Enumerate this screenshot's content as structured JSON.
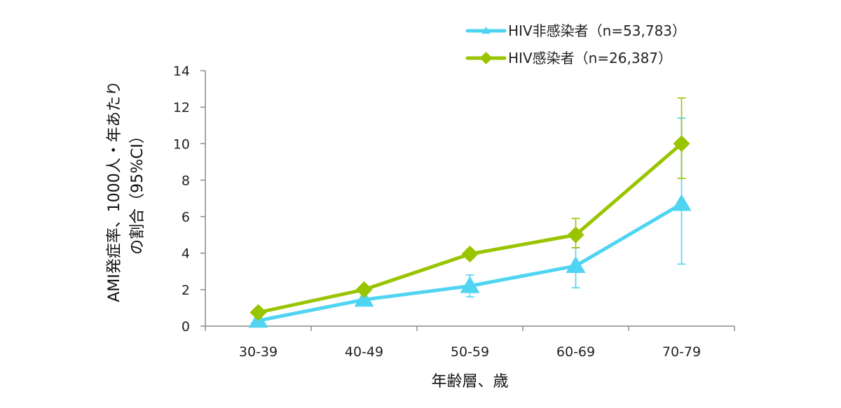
{
  "chart_data": {
    "type": "line",
    "categories": [
      "30-39",
      "40-49",
      "50-59",
      "60-69",
      "70-79"
    ],
    "xlabel": "年齢層、歳",
    "ylabel_lines": [
      "AMI発症率、1000人・年あたり",
      "の割合（95%CI）"
    ],
    "ylim": [
      0,
      14
    ],
    "yticks": [
      0,
      2,
      4,
      6,
      8,
      10,
      12,
      14
    ],
    "grid": false,
    "legend_position": "top-right",
    "series": [
      {
        "name": "HIV非感染者（n=53,783）",
        "color": "#4fd4f2",
        "marker": "triangle",
        "values": [
          0.3,
          1.45,
          2.2,
          3.3,
          6.7
        ],
        "ci_low": [
          null,
          null,
          1.6,
          2.1,
          3.4
        ],
        "ci_high": [
          null,
          null,
          2.8,
          4.3,
          11.4
        ]
      },
      {
        "name": "HIV感染者（n=26,387）",
        "color": "#99c400",
        "marker": "diamond",
        "values": [
          0.75,
          2.0,
          3.95,
          5.0,
          10.0
        ],
        "ci_low": [
          null,
          null,
          3.7,
          4.3,
          8.1
        ],
        "ci_high": [
          null,
          null,
          4.2,
          5.9,
          12.5
        ]
      }
    ]
  }
}
